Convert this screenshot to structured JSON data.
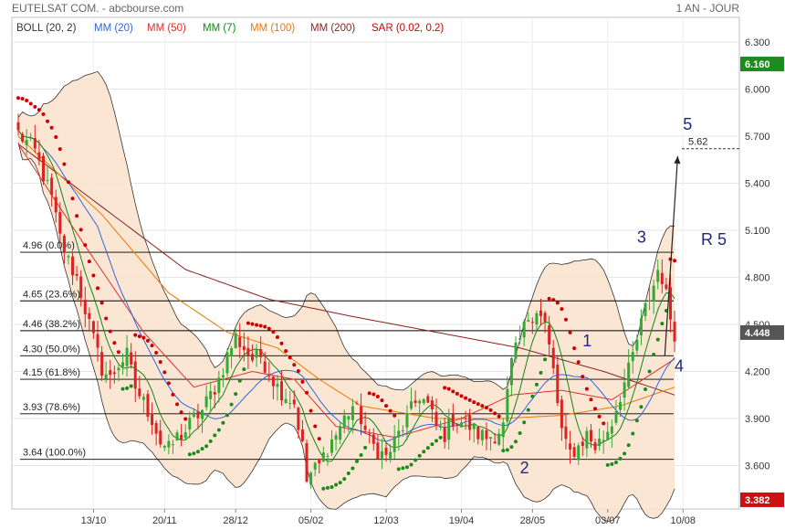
{
  "header": {
    "title": "EUTELSAT COM. - abcbourse.com",
    "period": "1 AN - JOUR"
  },
  "legend": [
    {
      "label": "BOLL (20, 2)",
      "color": "#333333"
    },
    {
      "label": "MM (20)",
      "color": "#3366dd"
    },
    {
      "label": "MM (50)",
      "color": "#e03030"
    },
    {
      "label": "MM (7)",
      "color": "#118811"
    },
    {
      "label": "MM (100)",
      "color": "#ee7700"
    },
    {
      "label": "MM (200)",
      "color": "#8b2020"
    },
    {
      "label": "SAR (0.02, 0.2)",
      "color": "#cc0000"
    }
  ],
  "badges": {
    "high": {
      "label": "6.160",
      "color": "#1f8a1f"
    },
    "last": {
      "label": "4.448",
      "color": "#555555"
    },
    "low": {
      "label": "3.382",
      "color": "#cc1111"
    }
  },
  "annotations": {
    "target_label": "5.62",
    "r5_label": "R 5",
    "waves": [
      {
        "label": "1",
        "x": 135,
        "y": 4.36
      },
      {
        "label": "2",
        "x": 120,
        "y": 3.55
      },
      {
        "label": "3",
        "x": 148,
        "y": 5.02
      },
      {
        "label": "4",
        "x": 157,
        "y": 4.2
      },
      {
        "label": "5",
        "x": 159,
        "y": 5.74
      }
    ]
  },
  "colors": {
    "candle_up": "#33aa33",
    "candle_down": "#dd2222",
    "bollinger_fill": "#fbe3cf",
    "fib_line": "#000000",
    "sar": "#cc0000",
    "sar_support": "#1a8a1a"
  },
  "chart_data": {
    "type": "candlestick",
    "title": "EUTELSAT COM. - abcbourse.com",
    "ylim": [
      3.38,
      6.4
    ],
    "y_ticks": [
      6.3,
      6.0,
      5.7,
      5.4,
      5.1,
      4.8,
      4.5,
      4.2,
      3.9,
      3.6
    ],
    "x_ticks": [
      {
        "label": "13/10",
        "x": 18
      },
      {
        "label": "20/11",
        "x": 35
      },
      {
        "label": "28/12",
        "x": 52
      },
      {
        "label": "05/02",
        "x": 70
      },
      {
        "label": "12/03",
        "x": 88
      },
      {
        "label": "19/04",
        "x": 106
      },
      {
        "label": "28/05",
        "x": 123
      },
      {
        "label": "03/07",
        "x": 141
      },
      {
        "label": "10/08",
        "x": 159
      }
    ],
    "fib_levels": [
      {
        "label": "4.96  (0.0%)",
        "value": 4.96
      },
      {
        "label": "4.65  (23.6%)",
        "value": 4.65
      },
      {
        "label": "4.46  (38.2%)",
        "value": 4.46
      },
      {
        "label": "4.30  (50.0%)",
        "value": 4.3
      },
      {
        "label": "4.15  (61.8%)",
        "value": 4.15
      },
      {
        "label": "3.93  (78.6%)",
        "value": 3.93
      },
      {
        "label": "3.64  (100.0%)",
        "value": 3.64
      }
    ],
    "target": {
      "value": 5.62,
      "from": {
        "x": 154,
        "y": 4.3
      },
      "to": {
        "x": 156,
        "y": 5.62
      }
    },
    "close_anchors": [
      [
        0,
        5.72
      ],
      [
        4,
        5.6
      ],
      [
        6,
        5.45
      ],
      [
        8,
        5.3
      ],
      [
        10,
        5.05
      ],
      [
        12,
        4.9
      ],
      [
        14,
        4.8
      ],
      [
        16,
        4.6
      ],
      [
        18,
        4.4
      ],
      [
        20,
        4.22
      ],
      [
        22,
        4.15
      ],
      [
        24,
        4.25
      ],
      [
        26,
        4.3
      ],
      [
        28,
        4.1
      ],
      [
        30,
        4.0
      ],
      [
        32,
        3.9
      ],
      [
        34,
        3.75
      ],
      [
        36,
        3.7
      ],
      [
        38,
        3.78
      ],
      [
        40,
        3.82
      ],
      [
        42,
        3.9
      ],
      [
        44,
        3.95
      ],
      [
        46,
        4.05
      ],
      [
        48,
        4.15
      ],
      [
        50,
        4.3
      ],
      [
        52,
        4.42
      ],
      [
        54,
        4.35
      ],
      [
        56,
        4.28
      ],
      [
        58,
        4.3
      ],
      [
        60,
        4.2
      ],
      [
        62,
        4.1
      ],
      [
        64,
        4.05
      ],
      [
        66,
        4.0
      ],
      [
        68,
        3.72
      ],
      [
        69,
        3.5
      ],
      [
        70,
        3.55
      ],
      [
        72,
        3.6
      ],
      [
        74,
        3.72
      ],
      [
        76,
        3.8
      ],
      [
        78,
        3.9
      ],
      [
        80,
        3.98
      ],
      [
        82,
        3.9
      ],
      [
        84,
        3.75
      ],
      [
        86,
        3.7
      ],
      [
        88,
        3.65
      ],
      [
        90,
        3.75
      ],
      [
        92,
        3.85
      ],
      [
        94,
        3.95
      ],
      [
        96,
        4.05
      ],
      [
        98,
        3.98
      ],
      [
        100,
        3.85
      ],
      [
        102,
        3.8
      ],
      [
        104,
        3.9
      ],
      [
        106,
        3.88
      ],
      [
        108,
        3.85
      ],
      [
        110,
        3.8
      ],
      [
        112,
        3.78
      ],
      [
        114,
        3.8
      ],
      [
        116,
        3.85
      ],
      [
        117,
        4.05
      ],
      [
        118,
        4.25
      ],
      [
        120,
        4.4
      ],
      [
        122,
        4.55
      ],
      [
        124,
        4.6
      ],
      [
        126,
        4.5
      ],
      [
        128,
        4.2
      ],
      [
        129,
        4.0
      ],
      [
        130,
        3.82
      ],
      [
        131,
        3.72
      ],
      [
        132,
        3.68
      ],
      [
        134,
        3.72
      ],
      [
        136,
        3.8
      ],
      [
        138,
        3.72
      ],
      [
        140,
        3.78
      ],
      [
        142,
        3.88
      ],
      [
        144,
        4.05
      ],
      [
        146,
        4.2
      ],
      [
        148,
        4.4
      ],
      [
        150,
        4.6
      ],
      [
        152,
        4.75
      ],
      [
        153,
        4.85
      ],
      [
        154,
        4.8
      ],
      [
        155,
        4.68
      ],
      [
        156,
        4.55
      ],
      [
        157,
        4.45
      ]
    ],
    "moving_averages": {
      "mm200": [
        [
          0,
          5.65
        ],
        [
          20,
          5.25
        ],
        [
          40,
          4.85
        ],
        [
          60,
          4.66
        ],
        [
          80,
          4.55
        ],
        [
          100,
          4.45
        ],
        [
          120,
          4.35
        ],
        [
          140,
          4.2
        ],
        [
          157,
          4.05
        ]
      ],
      "mm100": [
        [
          0,
          5.7
        ],
        [
          20,
          5.2
        ],
        [
          36,
          4.7
        ],
        [
          50,
          4.45
        ],
        [
          62,
          4.35
        ],
        [
          72,
          4.15
        ],
        [
          82,
          3.98
        ],
        [
          100,
          3.9
        ],
        [
          116,
          3.9
        ],
        [
          130,
          3.92
        ],
        [
          144,
          3.98
        ],
        [
          157,
          4.1
        ]
      ],
      "mm50": [
        [
          0,
          5.65
        ],
        [
          16,
          5.0
        ],
        [
          30,
          4.45
        ],
        [
          42,
          4.1
        ],
        [
          56,
          4.2
        ],
        [
          66,
          4.15
        ],
        [
          76,
          3.85
        ],
        [
          90,
          3.78
        ],
        [
          106,
          3.9
        ],
        [
          118,
          4.05
        ],
        [
          130,
          4.08
        ],
        [
          142,
          4.02
        ],
        [
          157,
          4.28
        ]
      ]
    }
  }
}
